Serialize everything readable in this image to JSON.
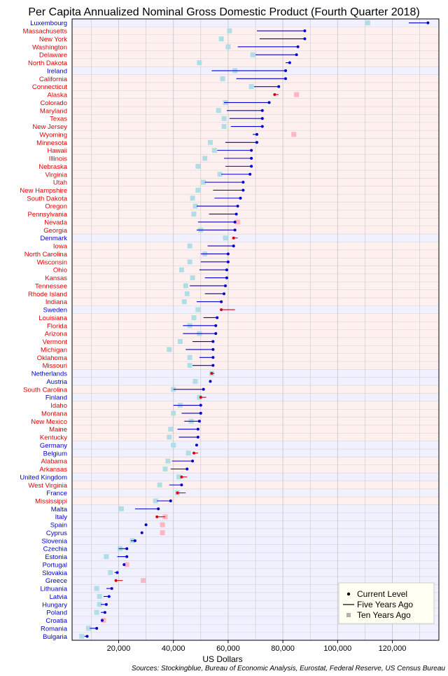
{
  "chart_data": {
    "type": "dot-range",
    "title": "Per Capita Annualized Nominal Gross Domestic Product (Fourth Quarter 2018)",
    "xlabel": "US Dollars",
    "source": "Sources: Stockingblue, Bureau of Economic Analysis, Eurostat, Federal Reserve, US Census Bureau",
    "xlim": [
      3000,
      137000
    ],
    "xticks": [
      20000,
      40000,
      60000,
      80000,
      100000,
      120000
    ],
    "xtick_labels": [
      "20,000",
      "40,000",
      "60,000",
      "80,000",
      "100,000",
      "120,000"
    ],
    "grid": true,
    "legend": {
      "position": "bottom-right",
      "entries": [
        "Current Level",
        "Five Years Ago",
        "Ten Years Ago"
      ]
    },
    "colors": {
      "state_label": "#e00000",
      "country_label": "#0000cc",
      "state_band": "#fff0f0",
      "country_band": "#f0f0ff",
      "growth": "#0000cc",
      "decline": "#dd0000",
      "ten_up": "#b0dde6",
      "ten_down": "#ffb6c1"
    },
    "rows": [
      {
        "name": "Luxembourg",
        "kind": "country",
        "current": 133000,
        "five": 126000,
        "ten": 111000
      },
      {
        "name": "Massachusetts",
        "kind": "state",
        "current": 88000,
        "five": 70500,
        "ten": 60500
      },
      {
        "name": "New York",
        "kind": "state",
        "current": 88000,
        "five": 71500,
        "ten": 57500
      },
      {
        "name": "Washington",
        "kind": "state",
        "current": 85500,
        "five": 63500,
        "ten": 60000
      },
      {
        "name": "Delaware",
        "kind": "state",
        "current": 85000,
        "five": 70000,
        "ten": 69000
      },
      {
        "name": "North Dakota",
        "kind": "state",
        "current": 82500,
        "five": 81000,
        "ten": 49500
      },
      {
        "name": "Ireland",
        "kind": "country",
        "current": 81000,
        "five": 54000,
        "ten": 62500
      },
      {
        "name": "California",
        "kind": "state",
        "current": 81000,
        "five": 63000,
        "ten": 58000
      },
      {
        "name": "Connecticut",
        "kind": "state",
        "current": 78500,
        "five": 69500,
        "ten": 68500
      },
      {
        "name": "Alaska",
        "kind": "state",
        "current": 77000,
        "five": 78500,
        "ten": 85000
      },
      {
        "name": "Colorado",
        "kind": "state",
        "current": 75000,
        "five": 58500,
        "ten": 59000
      },
      {
        "name": "Maryland",
        "kind": "state",
        "current": 72500,
        "five": 59500,
        "ten": 56500
      },
      {
        "name": "Texas",
        "kind": "state",
        "current": 72500,
        "five": 60500,
        "ten": 58500
      },
      {
        "name": "New Jersey",
        "kind": "state",
        "current": 72500,
        "five": 61000,
        "ten": 58500
      },
      {
        "name": "Wyoming",
        "kind": "state",
        "current": 70500,
        "five": 69000,
        "ten": 84000
      },
      {
        "name": "Minnesota",
        "kind": "state",
        "current": 70500,
        "five": 59000,
        "ten": 53500
      },
      {
        "name": "Hawaii",
        "kind": "state",
        "current": 68500,
        "five": 56000,
        "ten": 55000
      },
      {
        "name": "Illinois",
        "kind": "state",
        "current": 68500,
        "five": 58500,
        "ten": 51500
      },
      {
        "name": "Nebraska",
        "kind": "state",
        "current": 68500,
        "five": 59000,
        "ten": 49000
      },
      {
        "name": "Virginia",
        "kind": "state",
        "current": 68000,
        "five": 57500,
        "ten": 57000
      },
      {
        "name": "Utah",
        "kind": "state",
        "current": 65500,
        "five": 51500,
        "ten": 51000
      },
      {
        "name": "New Hampshire",
        "kind": "state",
        "current": 65500,
        "five": 54500,
        "ten": 49000
      },
      {
        "name": "South Dakota",
        "kind": "state",
        "current": 64500,
        "five": 55000,
        "ten": 47000
      },
      {
        "name": "Oregon",
        "kind": "state",
        "current": 63500,
        "five": 48500,
        "ten": 48000
      },
      {
        "name": "Pennsylvania",
        "kind": "state",
        "current": 63000,
        "five": 53000,
        "ten": 47500
      },
      {
        "name": "Nevada",
        "kind": "state",
        "current": 62500,
        "five": 49000,
        "ten": 63500
      },
      {
        "name": "Georgia",
        "kind": "state",
        "current": 62500,
        "five": 48500,
        "ten": 50000
      },
      {
        "name": "Denmark",
        "kind": "country",
        "current": 62000,
        "five": 63500,
        "ten": 59000
      },
      {
        "name": "Iowa",
        "kind": "state",
        "current": 62000,
        "five": 52500,
        "ten": 46000
      },
      {
        "name": "North Carolina",
        "kind": "state",
        "current": 60000,
        "five": 50000,
        "ten": 51500
      },
      {
        "name": "Wisconsin",
        "kind": "state",
        "current": 60000,
        "five": 50000,
        "ten": 46000
      },
      {
        "name": "Ohio",
        "kind": "state",
        "current": 59500,
        "five": 49500,
        "ten": 43000
      },
      {
        "name": "Kansas",
        "kind": "state",
        "current": 59500,
        "five": 51500,
        "ten": 47000
      },
      {
        "name": "Tennessee",
        "kind": "state",
        "current": 59000,
        "five": 46000,
        "ten": 44500
      },
      {
        "name": "Rhode Island",
        "kind": "state",
        "current": 58500,
        "five": 51500,
        "ten": 45000
      },
      {
        "name": "Indiana",
        "kind": "state",
        "current": 57500,
        "five": 48500,
        "ten": 44000
      },
      {
        "name": "Sweden",
        "kind": "country",
        "current": 57500,
        "five": 62500,
        "ten": 49000
      },
      {
        "name": "Louisiana",
        "kind": "state",
        "current": 56000,
        "five": 51000,
        "ten": 47500
      },
      {
        "name": "Florida",
        "kind": "state",
        "current": 55500,
        "five": 43500,
        "ten": 46000
      },
      {
        "name": "Arizona",
        "kind": "state",
        "current": 55500,
        "five": 43500,
        "ten": 49500
      },
      {
        "name": "Vermont",
        "kind": "state",
        "current": 54500,
        "five": 47000,
        "ten": 42500
      },
      {
        "name": "Michigan",
        "kind": "state",
        "current": 54500,
        "five": 44500,
        "ten": 38500
      },
      {
        "name": "Oklahoma",
        "kind": "state",
        "current": 54500,
        "five": 49500,
        "ten": 46000
      },
      {
        "name": "Missouri",
        "kind": "state",
        "current": 54500,
        "five": 47000,
        "ten": 46000
      },
      {
        "name": "Netherlands",
        "kind": "country",
        "current": 54000,
        "five": 55000,
        "ten": 54000
      },
      {
        "name": "Austria",
        "kind": "country",
        "current": 53500,
        "five": 53500,
        "ten": 48000
      },
      {
        "name": "South Carolina",
        "kind": "state",
        "current": 51000,
        "five": 40000,
        "ten": 40000
      },
      {
        "name": "Finland",
        "kind": "country",
        "current": 50000,
        "five": 52000,
        "ten": 49500
      },
      {
        "name": "Idaho",
        "kind": "state",
        "current": 50000,
        "five": 40000,
        "ten": 42500
      },
      {
        "name": "Montana",
        "kind": "state",
        "current": 50000,
        "five": 43000,
        "ten": 40000
      },
      {
        "name": "New Mexico",
        "kind": "state",
        "current": 49500,
        "five": 44000,
        "ten": 46500
      },
      {
        "name": "Maine",
        "kind": "state",
        "current": 49000,
        "five": 41500,
        "ten": 39000
      },
      {
        "name": "Kentucky",
        "kind": "state",
        "current": 49000,
        "five": 42000,
        "ten": 38500
      },
      {
        "name": "Germany",
        "kind": "country",
        "current": 48500,
        "five": 48500,
        "ten": 40000
      },
      {
        "name": "Belgium",
        "kind": "country",
        "current": 47500,
        "five": 49000,
        "ten": 45500
      },
      {
        "name": "Alabama",
        "kind": "state",
        "current": 47000,
        "five": 39500,
        "ten": 38000
      },
      {
        "name": "Arkansas",
        "kind": "state",
        "current": 45000,
        "five": 39000,
        "ten": 37000
      },
      {
        "name": "United Kingdom",
        "kind": "country",
        "current": 43000,
        "five": 45000,
        "ten": 42000
      },
      {
        "name": "West Virginia",
        "kind": "state",
        "current": 43000,
        "five": 38500,
        "ten": 35000
      },
      {
        "name": "France",
        "kind": "country",
        "current": 41500,
        "five": 44500,
        "ten": 41500
      },
      {
        "name": "Mississippi",
        "kind": "state",
        "current": 39000,
        "five": 34000,
        "ten": 33500
      },
      {
        "name": "Malta",
        "kind": "country",
        "current": 34500,
        "five": 26000,
        "ten": 21000
      },
      {
        "name": "Italy",
        "kind": "country",
        "current": 34000,
        "five": 37000,
        "ten": 37000
      },
      {
        "name": "Spain",
        "kind": "country",
        "current": 30000,
        "five": 30000,
        "ten": 36000
      },
      {
        "name": "Cyprus",
        "kind": "country",
        "current": 28500,
        "five": 28500,
        "ten": 36000
      },
      {
        "name": "Slovenia",
        "kind": "country",
        "current": 26000,
        "five": 24500,
        "ten": 25000
      },
      {
        "name": "Czechia",
        "kind": "country",
        "current": 23000,
        "five": 20000,
        "ten": 20500
      },
      {
        "name": "Estonia",
        "kind": "country",
        "current": 23000,
        "five": 19500,
        "ten": 15500
      },
      {
        "name": "Portugal",
        "kind": "country",
        "current": 22000,
        "five": 22000,
        "ten": 23000
      },
      {
        "name": "Slovakia",
        "kind": "country",
        "current": 19500,
        "five": 18500,
        "ten": 17000
      },
      {
        "name": "Greece",
        "kind": "country",
        "current": 19000,
        "five": 21500,
        "ten": 29000
      },
      {
        "name": "Lithuania",
        "kind": "country",
        "current": 17500,
        "five": 15500,
        "ten": 12000
      },
      {
        "name": "Latvia",
        "kind": "country",
        "current": 16500,
        "five": 14500,
        "ten": 13000
      },
      {
        "name": "Hungary",
        "kind": "country",
        "current": 15500,
        "five": 13500,
        "ten": 13000
      },
      {
        "name": "Poland",
        "kind": "country",
        "current": 15000,
        "five": 13500,
        "ten": 12000
      },
      {
        "name": "Croatia",
        "kind": "country",
        "current": 14000,
        "five": 13500,
        "ten": 14500
      },
      {
        "name": "Romania",
        "kind": "country",
        "current": 12000,
        "five": 9500,
        "ten": 9000
      },
      {
        "name": "Bulgaria",
        "kind": "country",
        "current": 8500,
        "five": 7500,
        "ten": 6500
      }
    ]
  }
}
